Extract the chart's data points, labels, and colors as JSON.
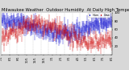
{
  "background_color": "#d8d8d8",
  "plot_bg_color": "#ffffff",
  "bar_color_blue": "#0000cc",
  "bar_color_red": "#cc0000",
  "grid_color": "#bbbbbb",
  "ylim": [
    0,
    100
  ],
  "ylabel_ticks": [
    20,
    40,
    60,
    80,
    100
  ],
  "n_days": 365,
  "legend_label_blue": "Hum",
  "legend_label_red": "Dew",
  "title_fontsize": 3.8,
  "tick_fontsize": 2.8,
  "title_text": "Milwaukee Weather  Outdoor Humidity  At Daily High Temperature  (Past Year)",
  "n_gridlines": 15
}
